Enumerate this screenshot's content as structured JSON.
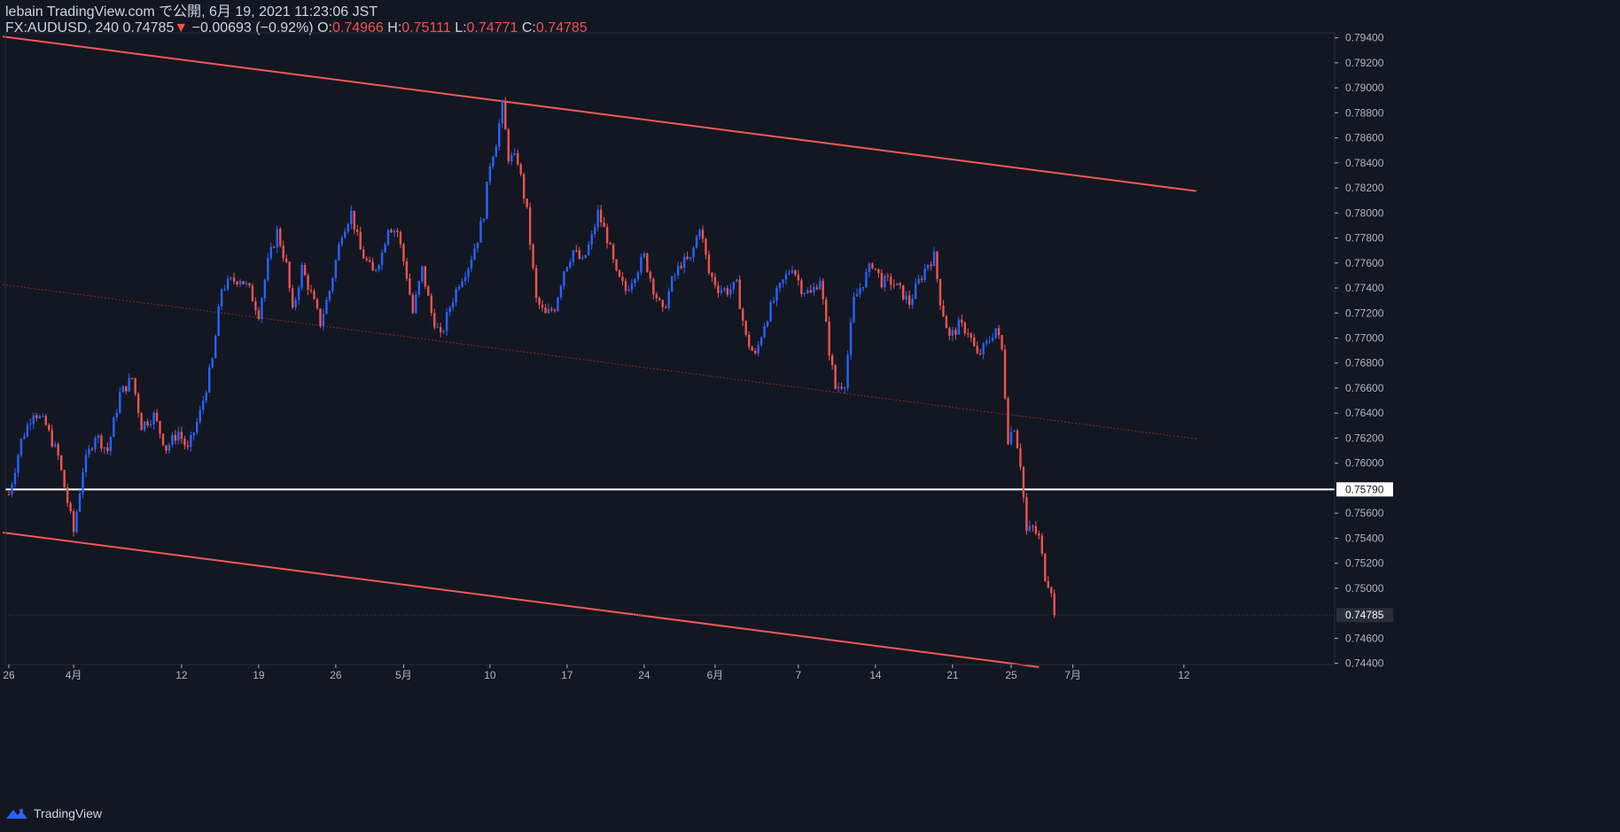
{
  "header": {
    "publish_line": "lebain TradingView.com で公開, 6月 19, 2021 11:23:06 JST",
    "symbol": "FX:AUDUSD, 240",
    "last": "0.74785",
    "change": "−0.00693 (−0.92%)",
    "o_label": "O:",
    "o_value": "0.74966",
    "h_label": "H:",
    "h_value": "0.75111",
    "l_label": "L:",
    "l_value": "0.74771",
    "c_label": "C:",
    "c_value": "0.74785"
  },
  "footer": {
    "brand": "TradingView"
  },
  "colors": {
    "background": "#131722",
    "up": "#2962ff",
    "down": "#ef5350",
    "channel": "#f05a57",
    "level": "#ffffff",
    "axis_text": "#b2b5be"
  },
  "chart_data": {
    "type": "candlestick",
    "symbol": "FX:AUDUSD",
    "interval": "240",
    "y_ticks": [
      "0.79400",
      "0.79200",
      "0.79000",
      "0.78800",
      "0.78600",
      "0.78400",
      "0.78200",
      "0.78000",
      "0.77800",
      "0.77600",
      "0.77400",
      "0.77200",
      "0.77000",
      "0.76800",
      "0.76600",
      "0.76400",
      "0.76200",
      "0.76000",
      "0.75600",
      "0.75400",
      "0.75200",
      "0.75000",
      "0.74600",
      "0.74400"
    ],
    "ylim": [
      0.7439,
      0.7944
    ],
    "x_ticks": [
      {
        "label": "26",
        "idx": 0
      },
      {
        "label": "4月",
        "idx": 21
      },
      {
        "label": "12",
        "idx": 56
      },
      {
        "label": "19",
        "idx": 81
      },
      {
        "label": "26",
        "idx": 106
      },
      {
        "label": "5月",
        "idx": 128
      },
      {
        "label": "10",
        "idx": 156
      },
      {
        "label": "17",
        "idx": 181
      },
      {
        "label": "24",
        "idx": 206
      },
      {
        "label": "6月",
        "idx": 229
      },
      {
        "label": "7",
        "idx": 256
      },
      {
        "label": "14",
        "idx": 281
      },
      {
        "label": "21",
        "idx": 306
      },
      {
        "label": "25",
        "idx": 325
      },
      {
        "label": "7月",
        "idx": 345
      },
      {
        "label": "12",
        "idx": 381
      }
    ],
    "horizontal_level": {
      "value": 0.7579,
      "label": "0.75790"
    },
    "last_price": {
      "value": 0.74785,
      "label": "0.74785"
    },
    "channel_upper": {
      "p1": {
        "idx": -2,
        "price": 0.7941
      },
      "p2": {
        "idx": 385,
        "price": 0.78175
      }
    },
    "channel_lower": {
      "p1": {
        "idx": -2,
        "price": 0.75445
      },
      "p2": {
        "idx": 334,
        "price": 0.7437
      }
    },
    "channel_mid": {
      "p1": {
        "idx": -2,
        "price": 0.77427
      },
      "p2": {
        "idx": 385,
        "price": 0.76194
      }
    },
    "anchors": [
      [
        0,
        0.7575
      ],
      [
        4,
        0.7618
      ],
      [
        8,
        0.7642
      ],
      [
        12,
        0.763
      ],
      [
        16,
        0.7605
      ],
      [
        21,
        0.7545
      ],
      [
        24,
        0.7595
      ],
      [
        28,
        0.7623
      ],
      [
        32,
        0.761
      ],
      [
        36,
        0.7655
      ],
      [
        40,
        0.7668
      ],
      [
        43,
        0.763
      ],
      [
        47,
        0.7638
      ],
      [
        51,
        0.7612
      ],
      [
        55,
        0.7625
      ],
      [
        58,
        0.761
      ],
      [
        62,
        0.764
      ],
      [
        66,
        0.7682
      ],
      [
        69,
        0.774
      ],
      [
        72,
        0.7745
      ],
      [
        75,
        0.7748
      ],
      [
        78,
        0.7738
      ],
      [
        81,
        0.772
      ],
      [
        84,
        0.776
      ],
      [
        87,
        0.7785
      ],
      [
        90,
        0.7758
      ],
      [
        92,
        0.772
      ],
      [
        95,
        0.7756
      ],
      [
        98,
        0.7735
      ],
      [
        101,
        0.7712
      ],
      [
        104,
        0.7738
      ],
      [
        108,
        0.7785
      ],
      [
        111,
        0.78
      ],
      [
        114,
        0.777
      ],
      [
        118,
        0.7752
      ],
      [
        121,
        0.7768
      ],
      [
        123,
        0.779
      ],
      [
        126,
        0.7785
      ],
      [
        129,
        0.775
      ],
      [
        131,
        0.772
      ],
      [
        134,
        0.7755
      ],
      [
        137,
        0.772
      ],
      [
        140,
        0.77
      ],
      [
        143,
        0.7725
      ],
      [
        146,
        0.7745
      ],
      [
        149,
        0.7758
      ],
      [
        152,
        0.778
      ],
      [
        154,
        0.78
      ],
      [
        156,
        0.784
      ],
      [
        158,
        0.7857
      ],
      [
        160,
        0.7885
      ],
      [
        162,
        0.7845
      ],
      [
        165,
        0.7842
      ],
      [
        168,
        0.78
      ],
      [
        171,
        0.773
      ],
      [
        174,
        0.7718
      ],
      [
        177,
        0.7725
      ],
      [
        180,
        0.7755
      ],
      [
        183,
        0.777
      ],
      [
        186,
        0.776
      ],
      [
        189,
        0.778
      ],
      [
        191,
        0.78
      ],
      [
        194,
        0.778
      ],
      [
        197,
        0.775
      ],
      [
        200,
        0.7738
      ],
      [
        203,
        0.7752
      ],
      [
        206,
        0.7765
      ],
      [
        209,
        0.774
      ],
      [
        212,
        0.772
      ],
      [
        215,
        0.7745
      ],
      [
        218,
        0.776
      ],
      [
        221,
        0.7762
      ],
      [
        224,
        0.779
      ],
      [
        227,
        0.7752
      ],
      [
        230,
        0.774
      ],
      [
        233,
        0.7738
      ],
      [
        236,
        0.7742
      ],
      [
        239,
        0.77
      ],
      [
        242,
        0.7685
      ],
      [
        245,
        0.7712
      ],
      [
        248,
        0.773
      ],
      [
        251,
        0.7745
      ],
      [
        254,
        0.7758
      ],
      [
        257,
        0.774
      ],
      [
        260,
        0.7735
      ],
      [
        263,
        0.7748
      ],
      [
        266,
        0.769
      ],
      [
        268,
        0.766
      ],
      [
        271,
        0.7665
      ],
      [
        274,
        0.773
      ],
      [
        277,
        0.7745
      ],
      [
        280,
        0.776
      ],
      [
        283,
        0.7745
      ],
      [
        286,
        0.7745
      ],
      [
        289,
        0.7738
      ],
      [
        292,
        0.7728
      ],
      [
        295,
        0.7745
      ],
      [
        298,
        0.776
      ],
      [
        300,
        0.7765
      ],
      [
        302,
        0.773
      ],
      [
        305,
        0.77
      ],
      [
        308,
        0.771
      ],
      [
        311,
        0.7706
      ],
      [
        314,
        0.7685
      ],
      [
        317,
        0.7695
      ],
      [
        320,
        0.7708
      ],
      [
        322,
        0.769
      ],
      [
        324,
        0.762
      ],
      [
        326,
        0.763
      ],
      [
        328,
        0.76
      ],
      [
        330,
        0.7545
      ],
      [
        332,
        0.7548
      ],
      [
        334,
        0.754
      ],
      [
        336,
        0.751
      ],
      [
        338,
        0.75
      ],
      [
        339,
        0.74785
      ]
    ]
  }
}
